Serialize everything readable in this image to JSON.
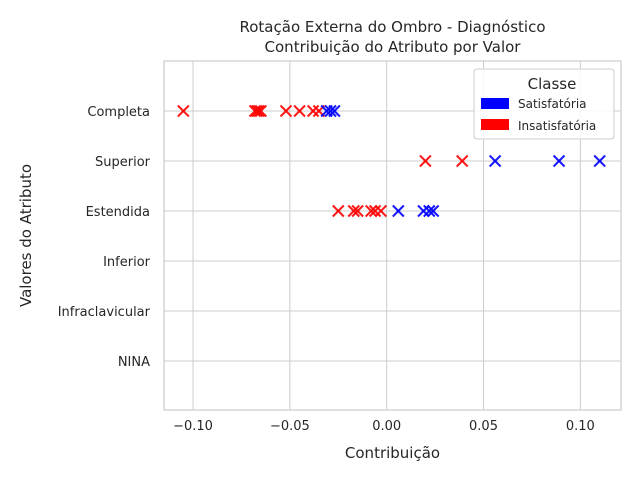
{
  "chart_data": {
    "type": "scatter",
    "title_lines": [
      "Rotação Externa do Ombro - Diagnóstico",
      "Contribuição do Atributo por Valor"
    ],
    "xlabel": "Contribuição",
    "ylabel": "Valores do Atributo",
    "xlim": [
      -0.115,
      0.121
    ],
    "x_ticks": [
      -0.1,
      -0.05,
      0.0,
      0.05,
      0.1
    ],
    "x_tick_labels": [
      "−0.10",
      "−0.05",
      "0.00",
      "0.05",
      "0.10"
    ],
    "categories": [
      "Completa",
      "Superior",
      "Estendida",
      "Inferior",
      "Infraclavicular",
      "NINA"
    ],
    "grid": true,
    "legend": {
      "title": "Classe",
      "placement": "top-right",
      "entries": [
        {
          "label": "Satisfatória",
          "color": "#0000ff"
        },
        {
          "label": "Insatisfatória",
          "color": "#ff0000"
        }
      ]
    },
    "series": [
      {
        "color": "#ff0000",
        "marker": "x",
        "points": [
          {
            "x": -0.105,
            "y": "Completa"
          },
          {
            "x": -0.068,
            "y": "Completa"
          },
          {
            "x": -0.067,
            "y": "Completa"
          },
          {
            "x": -0.066,
            "y": "Completa"
          },
          {
            "x": -0.065,
            "y": "Completa"
          },
          {
            "x": -0.052,
            "y": "Completa"
          },
          {
            "x": -0.045,
            "y": "Completa"
          },
          {
            "x": -0.038,
            "y": "Completa"
          },
          {
            "x": -0.035,
            "y": "Completa"
          },
          {
            "x": 0.02,
            "y": "Superior"
          },
          {
            "x": 0.039,
            "y": "Superior"
          },
          {
            "x": -0.025,
            "y": "Estendida"
          },
          {
            "x": -0.017,
            "y": "Estendida"
          },
          {
            "x": -0.015,
            "y": "Estendida"
          },
          {
            "x": -0.008,
            "y": "Estendida"
          },
          {
            "x": -0.006,
            "y": "Estendida"
          },
          {
            "x": -0.003,
            "y": "Estendida"
          }
        ]
      },
      {
        "color": "#0000ff",
        "marker": "x",
        "points": [
          {
            "x": -0.031,
            "y": "Completa"
          },
          {
            "x": -0.029,
            "y": "Completa"
          },
          {
            "x": -0.027,
            "y": "Completa"
          },
          {
            "x": 0.056,
            "y": "Superior"
          },
          {
            "x": 0.089,
            "y": "Superior"
          },
          {
            "x": 0.11,
            "y": "Superior"
          },
          {
            "x": 0.006,
            "y": "Estendida"
          },
          {
            "x": 0.019,
            "y": "Estendida"
          },
          {
            "x": 0.022,
            "y": "Estendida"
          },
          {
            "x": 0.024,
            "y": "Estendida"
          }
        ]
      }
    ]
  }
}
